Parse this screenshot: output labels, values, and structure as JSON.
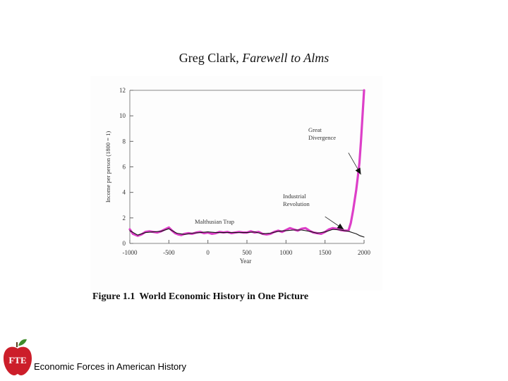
{
  "slide": {
    "title_author": "Greg Clark, ",
    "title_book": "Farewell to Alms",
    "footer": "Economic Forces in American History",
    "logo_text": "FTE"
  },
  "colors": {
    "highlight": "#dd3fc8",
    "line": "#111111",
    "logo_red": "#cc1e2a",
    "logo_leaf": "#3f8c2a"
  },
  "figure": {
    "number": "Figure 1.1",
    "caption": "World Economic History in One Picture"
  },
  "chart_data": {
    "type": "line",
    "xlabel": "Year",
    "ylabel": "Income per person (1800 = 1)",
    "xlim": [
      -1000,
      2000
    ],
    "ylim": [
      0,
      12
    ],
    "xticks": [
      -1000,
      -500,
      0,
      500,
      1000,
      1500,
      2000
    ],
    "xtick_labels": [
      "-1000",
      "-500",
      "0",
      "500",
      "1000",
      "1500",
      "2000"
    ],
    "yticks": [
      0,
      2,
      4,
      6,
      8,
      10,
      12
    ],
    "ytick_labels": [
      "0",
      "2",
      "4",
      "6",
      "8",
      "10",
      "12"
    ],
    "series": [
      {
        "style": "thick-magenta",
        "x": [
          -1000,
          -960,
          -900,
          -850,
          -800,
          -750,
          -700,
          -650,
          -600,
          -550,
          -500,
          -460,
          -420,
          -380,
          -340,
          -300,
          -250,
          -200,
          -150,
          -100,
          -50,
          0,
          50,
          100,
          150,
          200,
          250,
          300,
          350,
          400,
          450,
          500,
          550,
          600,
          650,
          700,
          750,
          800,
          850,
          900,
          950,
          1000,
          1050,
          1100,
          1150,
          1200,
          1250,
          1300,
          1350,
          1400,
          1450,
          1500,
          1550,
          1600,
          1650,
          1700,
          1750,
          1800,
          1830,
          1860,
          1880,
          1900,
          1920,
          1940,
          1960,
          1980,
          1990,
          2000
        ],
        "y": [
          1.1,
          0.75,
          0.6,
          0.7,
          0.9,
          0.95,
          0.9,
          0.85,
          0.95,
          1.1,
          1.25,
          1.0,
          0.8,
          0.7,
          0.65,
          0.75,
          0.8,
          0.75,
          0.85,
          0.9,
          0.8,
          0.85,
          0.75,
          0.8,
          0.9,
          0.85,
          0.9,
          0.8,
          0.85,
          0.9,
          0.85,
          0.85,
          0.95,
          0.85,
          0.9,
          0.75,
          0.7,
          0.75,
          0.9,
          1.0,
          0.9,
          1.05,
          1.2,
          1.1,
          1.0,
          1.15,
          1.2,
          1.0,
          0.85,
          0.8,
          0.75,
          0.9,
          1.1,
          1.2,
          1.15,
          1.05,
          1.0,
          1.0,
          1.6,
          2.6,
          3.4,
          4.2,
          5.2,
          6.3,
          8.0,
          10.0,
          11.0,
          12.0
        ]
      },
      {
        "style": "thin-black",
        "x": [
          -1000,
          -900,
          -800,
          -700,
          -600,
          -500,
          -400,
          -300,
          -200,
          -100,
          0,
          100,
          200,
          300,
          400,
          500,
          600,
          700,
          800,
          900,
          1000,
          1100,
          1200,
          1300,
          1400,
          1500,
          1600,
          1700,
          1800,
          1850,
          1900,
          1950,
          2000
        ],
        "y": [
          1.0,
          0.65,
          0.85,
          0.9,
          0.95,
          1.15,
          0.8,
          0.7,
          0.8,
          0.85,
          0.9,
          0.85,
          0.85,
          0.85,
          0.85,
          0.85,
          0.9,
          0.75,
          0.8,
          0.95,
          1.0,
          1.05,
          1.05,
          0.95,
          0.8,
          0.9,
          1.1,
          1.05,
          0.95,
          0.85,
          0.75,
          0.6,
          0.5
        ]
      }
    ],
    "annotations": [
      {
        "text_lines": [
          "Malthusian Trap"
        ]
      },
      {
        "text_lines": [
          "Industrial",
          "Revolution"
        ]
      },
      {
        "text_lines": [
          "Great",
          "Divergence"
        ]
      }
    ]
  }
}
